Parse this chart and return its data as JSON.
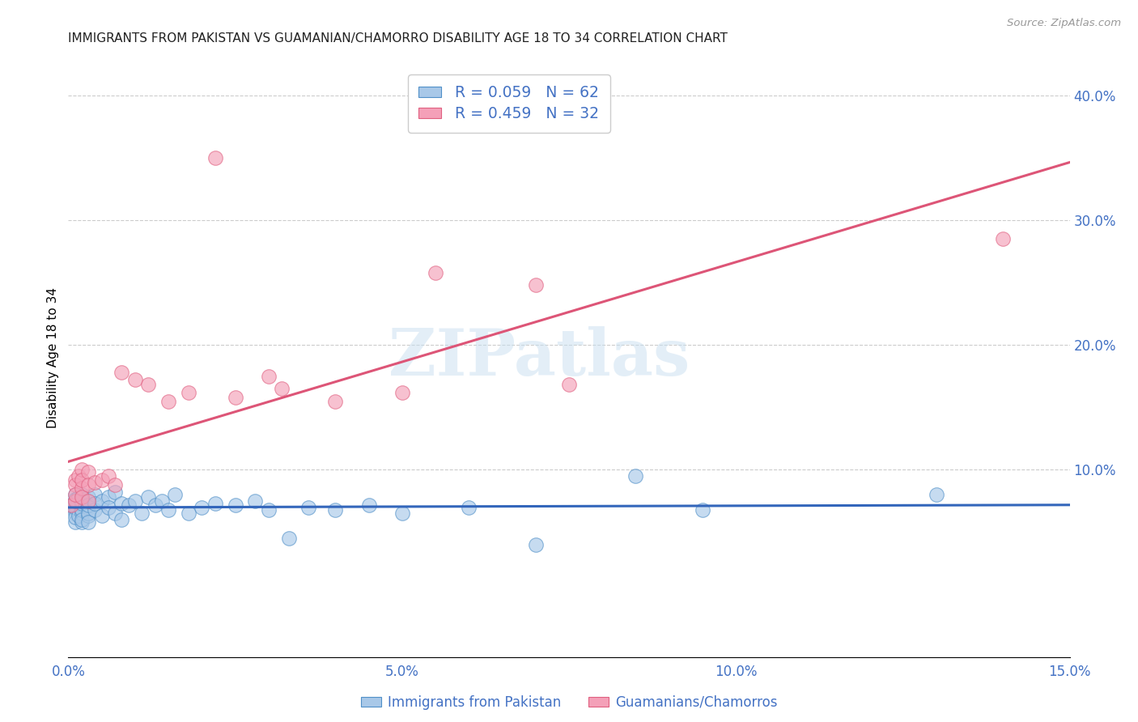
{
  "title": "IMMIGRANTS FROM PAKISTAN VS GUAMANIAN/CHAMORRO DISABILITY AGE 18 TO 34 CORRELATION CHART",
  "source": "Source: ZipAtlas.com",
  "ylabel": "Disability Age 18 to 34",
  "xlim": [
    0.0,
    0.15
  ],
  "ylim": [
    -0.05,
    0.43
  ],
  "xticks": [
    0.0,
    0.05,
    0.1,
    0.15
  ],
  "xticklabels": [
    "0.0%",
    "5.0%",
    "10.0%",
    "15.0%"
  ],
  "yticks_right": [
    0.1,
    0.2,
    0.3,
    0.4
  ],
  "yticklabels_right": [
    "10.0%",
    "20.0%",
    "30.0%",
    "40.0%"
  ],
  "legend_r1": "R = 0.059",
  "legend_n1": "N = 62",
  "legend_r2": "R = 0.459",
  "legend_n2": "N = 32",
  "blue_color": "#a8c8e8",
  "pink_color": "#f4a0b8",
  "blue_edge_color": "#5090c8",
  "pink_edge_color": "#e06080",
  "blue_line_color": "#3366bb",
  "pink_line_color": "#dd5577",
  "title_color": "#222222",
  "tick_label_color": "#4472c4",
  "watermark_color": "#c8dff0",
  "watermark": "ZIPatlas",
  "blue_points_x": [
    0.0005,
    0.001,
    0.001,
    0.001,
    0.001,
    0.001,
    0.001,
    0.001,
    0.001,
    0.001,
    0.0015,
    0.0015,
    0.002,
    0.002,
    0.002,
    0.002,
    0.002,
    0.002,
    0.002,
    0.002,
    0.0025,
    0.003,
    0.003,
    0.003,
    0.003,
    0.003,
    0.003,
    0.004,
    0.004,
    0.004,
    0.005,
    0.005,
    0.006,
    0.006,
    0.007,
    0.007,
    0.008,
    0.008,
    0.009,
    0.01,
    0.011,
    0.012,
    0.013,
    0.014,
    0.015,
    0.016,
    0.018,
    0.02,
    0.022,
    0.025,
    0.028,
    0.03,
    0.033,
    0.036,
    0.04,
    0.045,
    0.05,
    0.06,
    0.07,
    0.085,
    0.095,
    0.13
  ],
  "blue_points_y": [
    0.072,
    0.075,
    0.068,
    0.065,
    0.058,
    0.072,
    0.08,
    0.062,
    0.07,
    0.076,
    0.063,
    0.078,
    0.072,
    0.065,
    0.08,
    0.058,
    0.068,
    0.073,
    0.06,
    0.075,
    0.076,
    0.07,
    0.063,
    0.078,
    0.065,
    0.072,
    0.058,
    0.08,
    0.068,
    0.073,
    0.075,
    0.063,
    0.078,
    0.07,
    0.082,
    0.065,
    0.073,
    0.06,
    0.072,
    0.075,
    0.065,
    0.078,
    0.072,
    0.075,
    0.068,
    0.08,
    0.065,
    0.07,
    0.073,
    0.072,
    0.075,
    0.068,
    0.045,
    0.07,
    0.068,
    0.072,
    0.065,
    0.07,
    0.04,
    0.095,
    0.068,
    0.08
  ],
  "pink_points_x": [
    0.0005,
    0.001,
    0.001,
    0.001,
    0.001,
    0.0015,
    0.002,
    0.002,
    0.002,
    0.002,
    0.003,
    0.003,
    0.003,
    0.004,
    0.005,
    0.006,
    0.007,
    0.008,
    0.01,
    0.012,
    0.015,
    0.018,
    0.022,
    0.025,
    0.03,
    0.032,
    0.04,
    0.05,
    0.055,
    0.07,
    0.075,
    0.14
  ],
  "pink_points_y": [
    0.072,
    0.075,
    0.092,
    0.088,
    0.08,
    0.095,
    0.1,
    0.085,
    0.078,
    0.092,
    0.098,
    0.075,
    0.088,
    0.09,
    0.092,
    0.095,
    0.088,
    0.178,
    0.172,
    0.168,
    0.155,
    0.162,
    0.35,
    0.158,
    0.175,
    0.165,
    0.155,
    0.162,
    0.258,
    0.248,
    0.168,
    0.285
  ],
  "bottom_legend_labels": [
    "Immigrants from Pakistan",
    "Guamanians/Chamorros"
  ]
}
